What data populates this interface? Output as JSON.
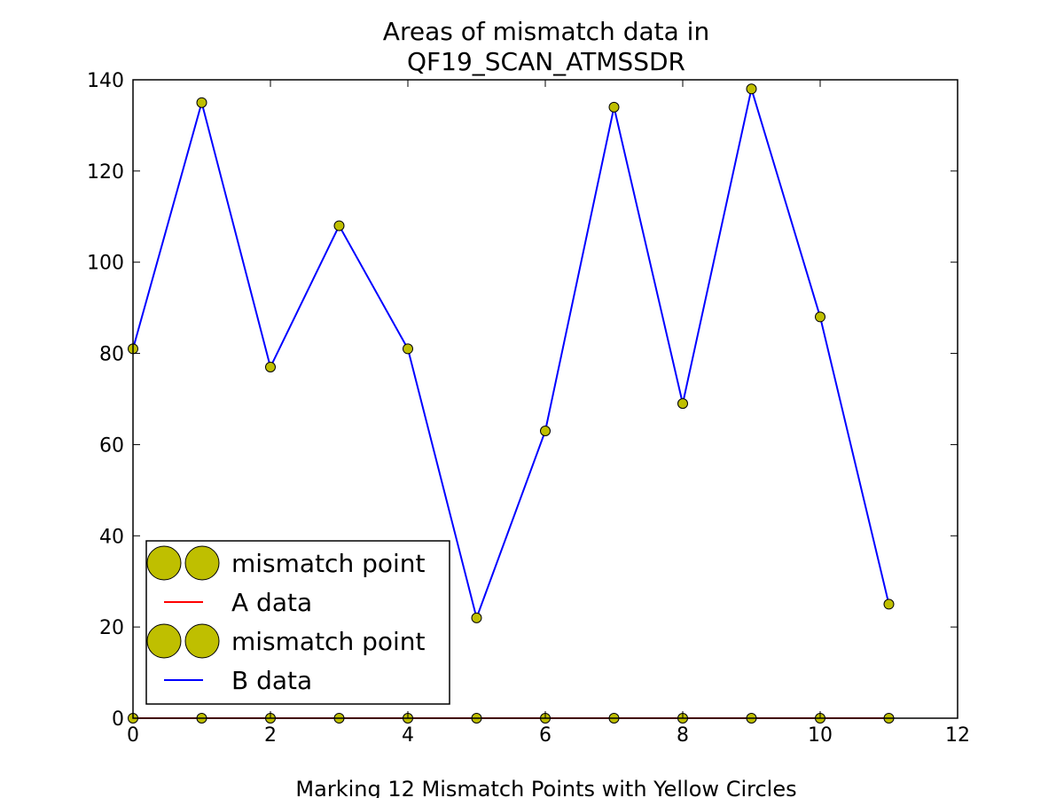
{
  "chart_data": {
    "type": "line",
    "title_lines": [
      "Areas of mismatch data in",
      "QF19_SCAN_ATMSSDR"
    ],
    "xlabel": "Marking 12 Mismatch Points with Yellow Circles",
    "ylabel": "",
    "xlim": [
      0,
      12
    ],
    "ylim": [
      0,
      140
    ],
    "xticks": [
      0,
      2,
      4,
      6,
      8,
      10,
      12
    ],
    "yticks": [
      0,
      20,
      40,
      60,
      80,
      100,
      120,
      140
    ],
    "grid": false,
    "legend_position": "lower-left",
    "x": [
      0,
      1,
      2,
      3,
      4,
      5,
      6,
      7,
      8,
      9,
      10,
      11
    ],
    "series": [
      {
        "name": "A data",
        "color": "#ff0000",
        "values": [
          0,
          0,
          0,
          0,
          0,
          0,
          0,
          0,
          0,
          0,
          0,
          0
        ],
        "marker_label": "mismatch point",
        "marker_color": "#bfbf00"
      },
      {
        "name": "B data",
        "color": "#0000ff",
        "values": [
          81,
          135,
          77,
          108,
          81,
          22,
          63,
          134,
          69,
          138,
          88,
          25
        ],
        "marker_label": "mismatch point",
        "marker_color": "#bfbf00"
      }
    ],
    "legend": [
      {
        "label": "mismatch point",
        "kind": "marker",
        "color": "#bfbf00"
      },
      {
        "label": "A data",
        "kind": "line",
        "color": "#ff0000"
      },
      {
        "label": "mismatch point",
        "kind": "marker",
        "color": "#bfbf00"
      },
      {
        "label": "B data",
        "kind": "line",
        "color": "#0000ff"
      }
    ]
  }
}
